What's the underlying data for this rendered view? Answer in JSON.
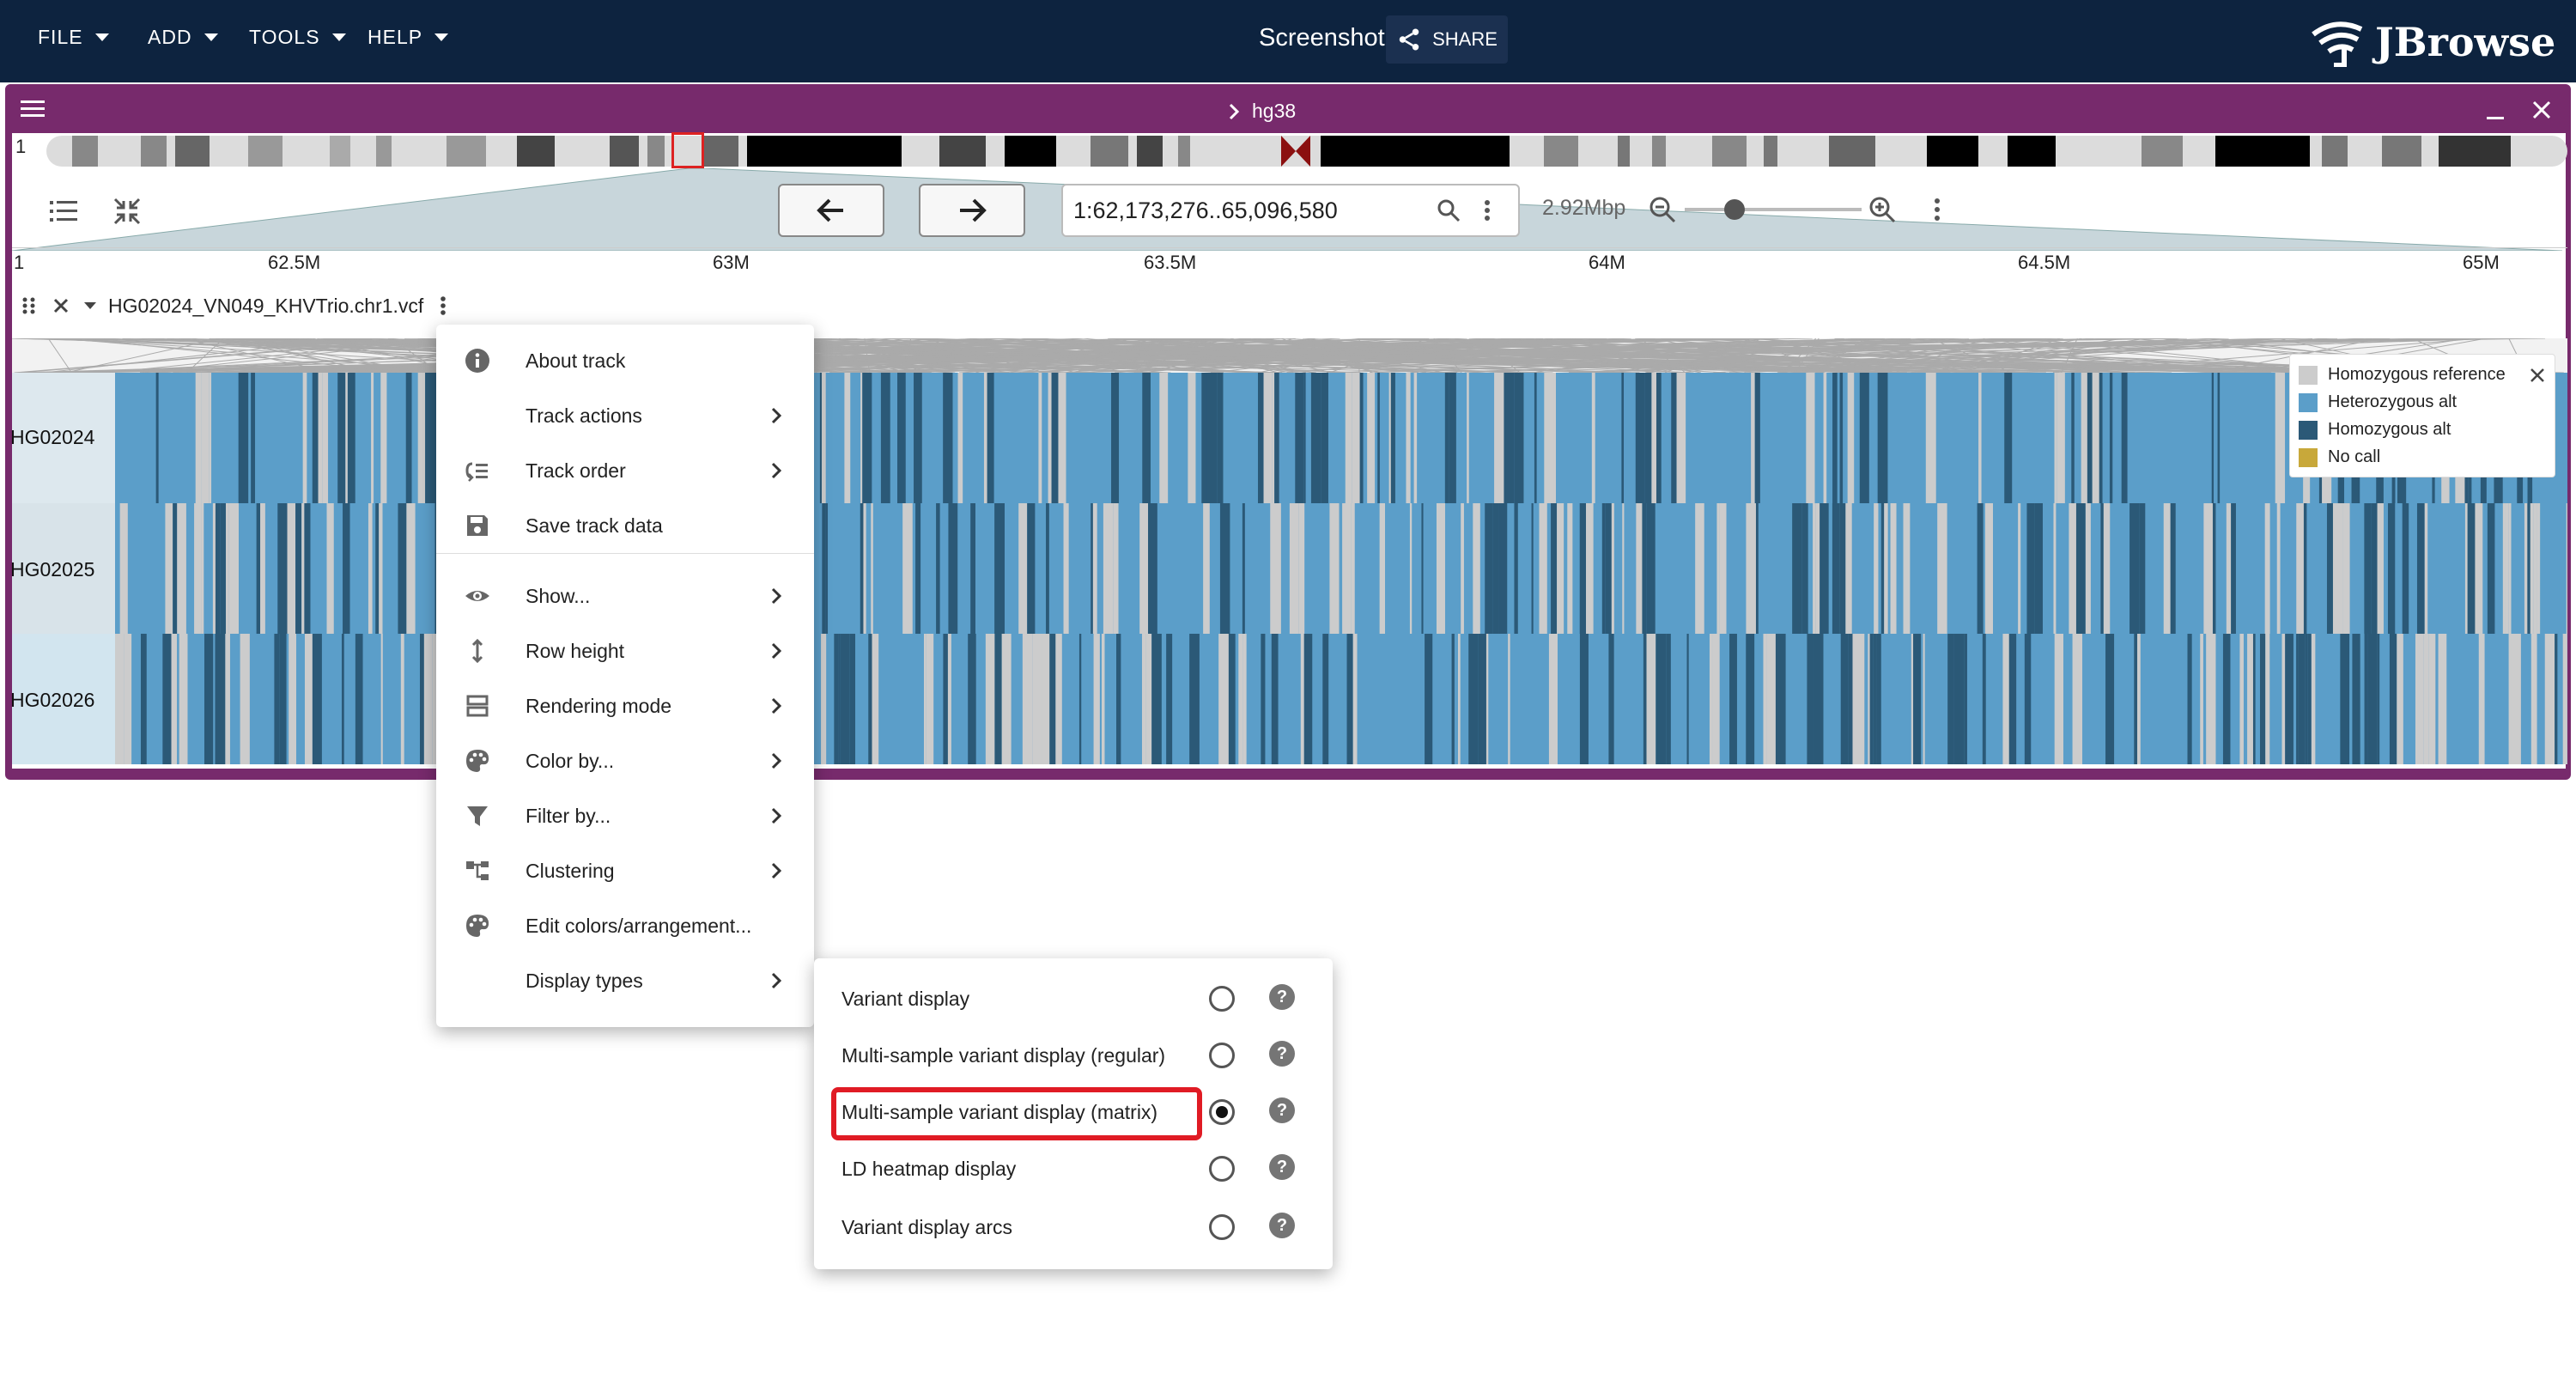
{
  "appbar": {
    "menus": [
      "FILE",
      "ADD",
      "TOOLS",
      "HELP"
    ],
    "session_title": "Screenshot",
    "share_label": "SHARE",
    "logo_text": "JBrowse"
  },
  "view": {
    "assembly": "hg38",
    "chromosome_label": "1",
    "locstring": "1:62,173,276..65,096,580",
    "region_size": "2.92Mbp",
    "ruler": {
      "ref_label": "1",
      "ticks": [
        "62.5M",
        "63M",
        "63.5M",
        "64M",
        "64.5M",
        "65M"
      ]
    }
  },
  "track": {
    "name": "HG02024_VN049_KHVTrio.chr1.vcf",
    "samples": [
      "HG02024",
      "HG02025",
      "HG02026"
    ]
  },
  "legend": {
    "items": [
      {
        "label": "Homozygous reference",
        "color": "#cccccc"
      },
      {
        "label": "Heterozygous alt",
        "color": "#5b9ec9"
      },
      {
        "label": "Homozygous alt",
        "color": "#2b5977"
      },
      {
        "label": "No call",
        "color": "#c8a83a"
      }
    ]
  },
  "context_menu": {
    "items": [
      {
        "label": "About track",
        "icon": "info-icon",
        "submenu": false
      },
      {
        "label": "Track actions",
        "icon": "",
        "submenu": true
      },
      {
        "label": "Track order",
        "icon": "track-order-icon",
        "submenu": true
      },
      {
        "label": "Save track data",
        "icon": "save-icon",
        "submenu": false
      },
      {
        "label": "Show...",
        "icon": "eye-icon",
        "submenu": true
      },
      {
        "label": "Row height",
        "icon": "row-height-icon",
        "submenu": true
      },
      {
        "label": "Rendering mode",
        "icon": "rendering-mode-icon",
        "submenu": true
      },
      {
        "label": "Color by...",
        "icon": "palette-icon",
        "submenu": true
      },
      {
        "label": "Filter by...",
        "icon": "filter-icon",
        "submenu": true
      },
      {
        "label": "Clustering",
        "icon": "clustering-icon",
        "submenu": true
      },
      {
        "label": "Edit colors/arrangement...",
        "icon": "palette-icon",
        "submenu": false
      },
      {
        "label": "Display types",
        "icon": "",
        "submenu": true
      }
    ]
  },
  "display_types": {
    "items": [
      {
        "label": "Variant display",
        "selected": false
      },
      {
        "label": "Multi-sample variant display (regular)",
        "selected": false
      },
      {
        "label": "Multi-sample variant display (matrix)",
        "selected": true
      },
      {
        "label": "LD heatmap display",
        "selected": false
      },
      {
        "label": "Variant display arcs",
        "selected": false
      }
    ]
  }
}
